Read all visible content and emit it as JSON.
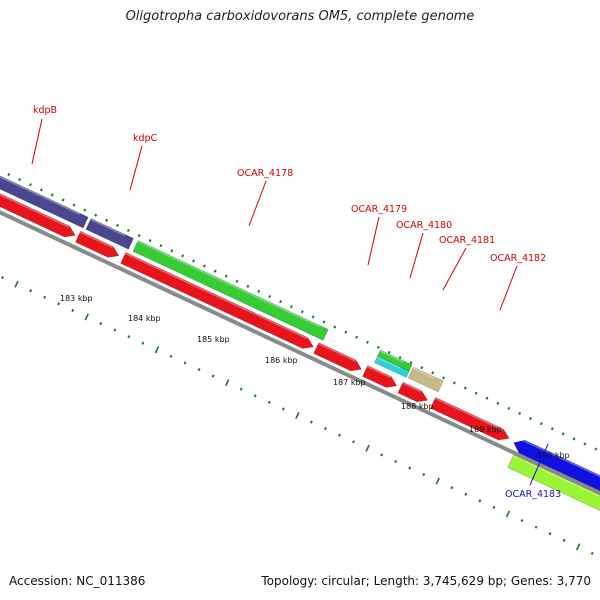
{
  "title": "Oligotropha carboxidovorans OM5, complete genome",
  "footer": {
    "accession": "Accession: NC_011386",
    "stats": "Topology: circular; Length: 3,745,629 bp; Genes: 3,770"
  },
  "colors": {
    "backbone": "#8a8a8a",
    "tick": "#1d7a1d",
    "cds": "#e8141c",
    "gene_purple": "#4b4690",
    "gene_green": "#35cc35",
    "gene_lime": "#99f535",
    "gene_blue": "#1010e0",
    "gene_teal": "#29d3d3",
    "gene_khaki": "#c8ba86",
    "label_red": "#d10000",
    "label_blue": "#1616b8"
  },
  "kbp_labels": [
    "183 kbp",
    "184 kbp",
    "185 kbp",
    "186 kbp",
    "187 kbp",
    "188 kbp",
    "189 kbp",
    "190 kbp"
  ],
  "gene_labels": [
    {
      "id": "kdpb",
      "text": "kdpB",
      "color": "red"
    },
    {
      "id": "kdpc",
      "text": "kdpC",
      "color": "red"
    },
    {
      "id": "ocar4178",
      "text": "OCAR_4178",
      "color": "red"
    },
    {
      "id": "ocar4179",
      "text": "OCAR_4179",
      "color": "red"
    },
    {
      "id": "ocar4180",
      "text": "OCAR_4180",
      "color": "red"
    },
    {
      "id": "ocar4181",
      "text": "OCAR_4181",
      "color": "red"
    },
    {
      "id": "ocar4182",
      "text": "OCAR_4182",
      "color": "red"
    },
    {
      "id": "ocar4183",
      "text": "OCAR_4183",
      "color": "blue"
    }
  ]
}
